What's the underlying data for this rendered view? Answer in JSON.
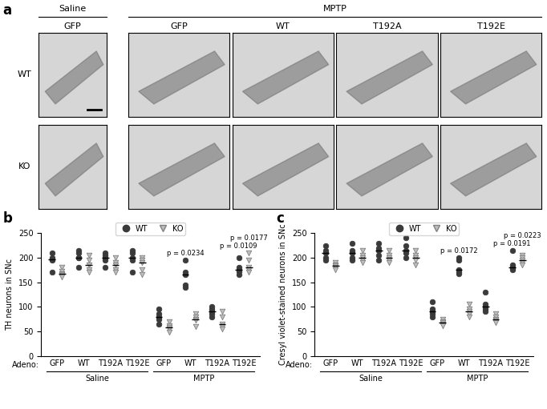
{
  "image_panel": {
    "panel_label": "a",
    "groups": [
      {
        "label": "Saline",
        "columns": [
          "GFP"
        ]
      },
      {
        "label": "MPTP",
        "columns": [
          "GFP",
          "WT",
          "T192A",
          "T192E"
        ]
      }
    ],
    "rows": [
      "WT",
      "KO"
    ]
  },
  "chart_data": [
    {
      "panel_label": "b",
      "type": "scatter",
      "y_label": "TH neurons in SNc",
      "x_label": "Adeno:",
      "groups": [
        {
          "label": "Saline",
          "categories": [
            "GFP",
            "WT",
            "T192A",
            "T192E"
          ]
        },
        {
          "label": "MPTP",
          "categories": [
            "GFP",
            "WT",
            "T192A",
            "T192E"
          ]
        }
      ],
      "ylim": [
        0,
        250
      ],
      "yticks": [
        0,
        50,
        100,
        150,
        200,
        250
      ],
      "legend": "upper center",
      "series": [
        {
          "name": "WT",
          "color": "#3a3a3a",
          "marker": "circle",
          "values": [
            [
              210,
              200,
              197,
              195,
              170
            ],
            [
              215,
              210,
              200,
              200,
              180
            ],
            [
              210,
              205,
              200,
              195,
              180
            ],
            [
              215,
              210,
              200,
              195,
              170
            ],
            [
              95,
              85,
              80,
              75,
              65
            ],
            [
              195,
              170,
              165,
              145,
              140
            ],
            [
              100,
              95,
              90,
              85,
              80
            ],
            [
              200,
              180,
              175,
              172,
              165
            ]
          ],
          "medians": [
            197,
            200,
            200,
            200,
            80,
            165,
            90,
            175
          ]
        },
        {
          "name": "KO",
          "color": "#bdbdbd",
          "marker": "triangle_down",
          "values": [
            [
              180,
              172,
              168,
              165,
              160
            ],
            [
              205,
              195,
              185,
              175,
              170
            ],
            [
              200,
              190,
              185,
              175,
              170
            ],
            [
              200,
              195,
              190,
              175,
              165
            ],
            [
              70,
              62,
              58,
              55,
              48
            ],
            [
              85,
              80,
              75,
              72,
              60
            ],
            [
              90,
              80,
              65,
              60,
              55
            ],
            [
              210,
              195,
              180,
              175,
              170
            ]
          ],
          "medians": [
            168,
            185,
            185,
            190,
            58,
            75,
            65,
            180
          ]
        }
      ],
      "annotations": [
        {
          "text": "p = 0.0234",
          "group": "MPTP",
          "category": "WT",
          "series": "WT"
        },
        {
          "text": "p = 0.0109",
          "group": "MPTP",
          "category": "T192E",
          "series": "WT"
        },
        {
          "text": "p = 0.0177",
          "group": "MPTP",
          "category": "T192E",
          "series": "KO"
        }
      ]
    },
    {
      "panel_label": "c",
      "type": "scatter",
      "y_label": "Cresyl violet-stained neurons in SNc",
      "x_label": "Adeno:",
      "groups": [
        {
          "label": "Saline",
          "categories": [
            "GFP",
            "WT",
            "T192A",
            "T192E"
          ]
        },
        {
          "label": "MPTP",
          "categories": [
            "GFP",
            "WT",
            "T192A",
            "T192E"
          ]
        }
      ],
      "ylim": [
        0,
        250
      ],
      "yticks": [
        0,
        50,
        100,
        150,
        200,
        250
      ],
      "legend": "upper center",
      "series": [
        {
          "name": "WT",
          "color": "#3a3a3a",
          "marker": "circle",
          "values": [
            [
              225,
              215,
              210,
              200,
              195
            ],
            [
              230,
              215,
              210,
              200,
              195
            ],
            [
              230,
              220,
              215,
              205,
              195
            ],
            [
              240,
              225,
              215,
              210,
              200
            ],
            [
              110,
              95,
              90,
              85,
              80
            ],
            [
              200,
              195,
              175,
              170,
              168
            ],
            [
              130,
              105,
              100,
              95,
              90
            ],
            [
              215,
              185,
              180,
              178,
              175
            ]
          ],
          "medians": [
            210,
            210,
            215,
            215,
            90,
            175,
            100,
            180
          ]
        },
        {
          "name": "KO",
          "color": "#bdbdbd",
          "marker": "triangle_down",
          "values": [
            [
              190,
              185,
              183,
              180,
              175
            ],
            [
              215,
              205,
              200,
              195,
              190
            ],
            [
              215,
              205,
              200,
              195,
              190
            ],
            [
              215,
              205,
              200,
              195,
              185
            ],
            [
              75,
              70,
              68,
              65,
              62
            ],
            [
              105,
              95,
              90,
              85,
              80
            ],
            [
              85,
              80,
              75,
              72,
              68
            ],
            [
              205,
              200,
              195,
              190,
              185
            ]
          ],
          "medians": [
            183,
            200,
            200,
            200,
            68,
            90,
            75,
            195
          ]
        }
      ],
      "annotations": [
        {
          "text": "p = 0.0172",
          "group": "MPTP",
          "category": "WT",
          "series": "WT"
        },
        {
          "text": "p = 0.0191",
          "group": "MPTP",
          "category": "T192E",
          "series": "WT"
        },
        {
          "text": "p = 0.0223",
          "group": "MPTP",
          "category": "T192E",
          "series": "KO"
        }
      ]
    }
  ]
}
